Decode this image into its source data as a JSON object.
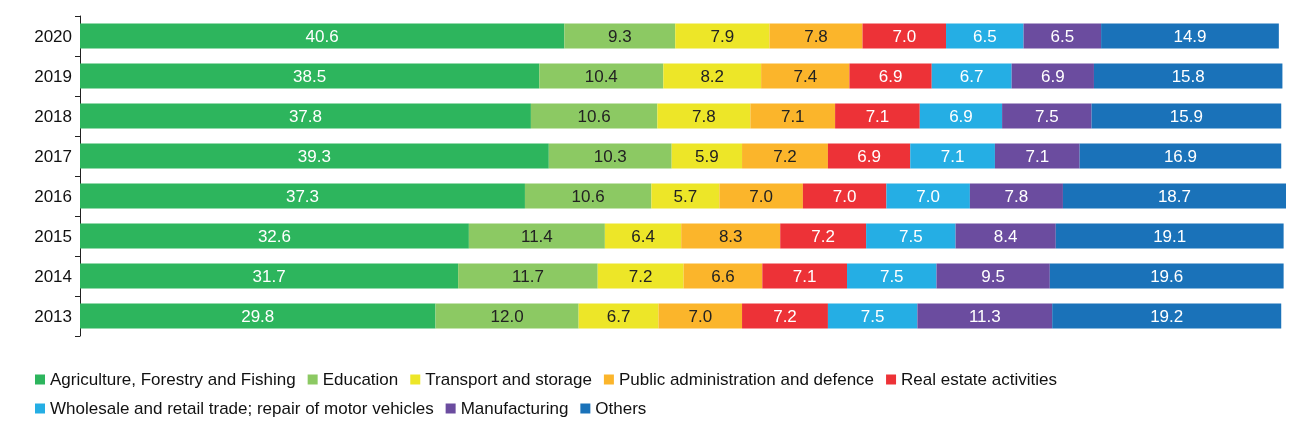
{
  "chart_data": {
    "type": "bar",
    "orientation": "horizontal",
    "stacked": true,
    "legend": "bottom",
    "categories": [
      "2020",
      "2019",
      "2018",
      "2017",
      "2016",
      "2015",
      "2014",
      "2013"
    ],
    "series": [
      {
        "name": "Agriculture, Forestry and Fishing",
        "color": "#2db55d",
        "values": [
          40.6,
          38.5,
          37.8,
          39.3,
          37.3,
          32.6,
          31.7,
          29.8
        ],
        "value_labels": [
          "40.6",
          "38.5",
          "37.8",
          "39.3",
          "37.3",
          "32.6",
          "31.7",
          "29.8"
        ]
      },
      {
        "name": "Education",
        "color": "#8cc963",
        "values": [
          9.3,
          10.4,
          10.6,
          10.3,
          10.6,
          11.4,
          11.7,
          12.0
        ],
        "value_labels": [
          "9.3",
          "10.4",
          "10.6",
          "10.3",
          "10.6",
          "11.4",
          "11.7",
          "12.0"
        ]
      },
      {
        "name": "Transport and storage",
        "color": "#ede628",
        "values": [
          7.9,
          8.2,
          7.8,
          5.9,
          5.7,
          6.4,
          7.2,
          6.7
        ],
        "value_labels": [
          "7.9",
          "8.2",
          "7.8",
          "5.9",
          "5.7",
          "6.4",
          "7.2",
          "6.7"
        ]
      },
      {
        "name": "Public administration and defence",
        "color": "#fbb52b",
        "values": [
          7.8,
          7.4,
          7.1,
          7.2,
          7.0,
          8.3,
          6.6,
          7.0
        ],
        "value_labels": [
          "7.8",
          "7.4",
          "7.1",
          "7.2",
          "7.0",
          "8.3",
          "6.6",
          "7.0"
        ]
      },
      {
        "name": "Real estate activities",
        "color": "#ed3237",
        "values": [
          7.0,
          6.9,
          7.1,
          6.9,
          7.0,
          7.2,
          7.1,
          7.2
        ],
        "value_labels": [
          "7.0",
          "6.9",
          "7.1",
          "6.9",
          "7.0",
          "7.2",
          "7.1",
          "7.2"
        ]
      },
      {
        "name": "Wholesale and retail trade; repair of motor vehicles",
        "color": "#25aee4",
        "values": [
          6.5,
          6.7,
          6.9,
          7.1,
          7.0,
          7.5,
          7.5,
          7.5
        ],
        "value_labels": [
          "6.5",
          "6.7",
          "6.9",
          "7.1",
          "7.0",
          "7.5",
          "7.5",
          "7.5"
        ]
      },
      {
        "name": "Manufacturing",
        "color": "#6b4c9f",
        "values": [
          6.5,
          6.9,
          7.5,
          7.1,
          7.8,
          8.4,
          9.5,
          11.3
        ],
        "value_labels": [
          "6.5",
          "6.9",
          "7.5",
          "7.1",
          "7.8",
          "8.4",
          "9.5",
          "11.3"
        ]
      },
      {
        "name": "Others",
        "color": "#1a72b9",
        "values": [
          14.9,
          15.8,
          15.9,
          16.9,
          18.7,
          19.1,
          19.6,
          19.2
        ],
        "value_labels": [
          "14.9",
          "15.8",
          "15.9",
          "16.9",
          "18.7",
          "19.1",
          "19.6",
          "19.2"
        ]
      }
    ]
  }
}
